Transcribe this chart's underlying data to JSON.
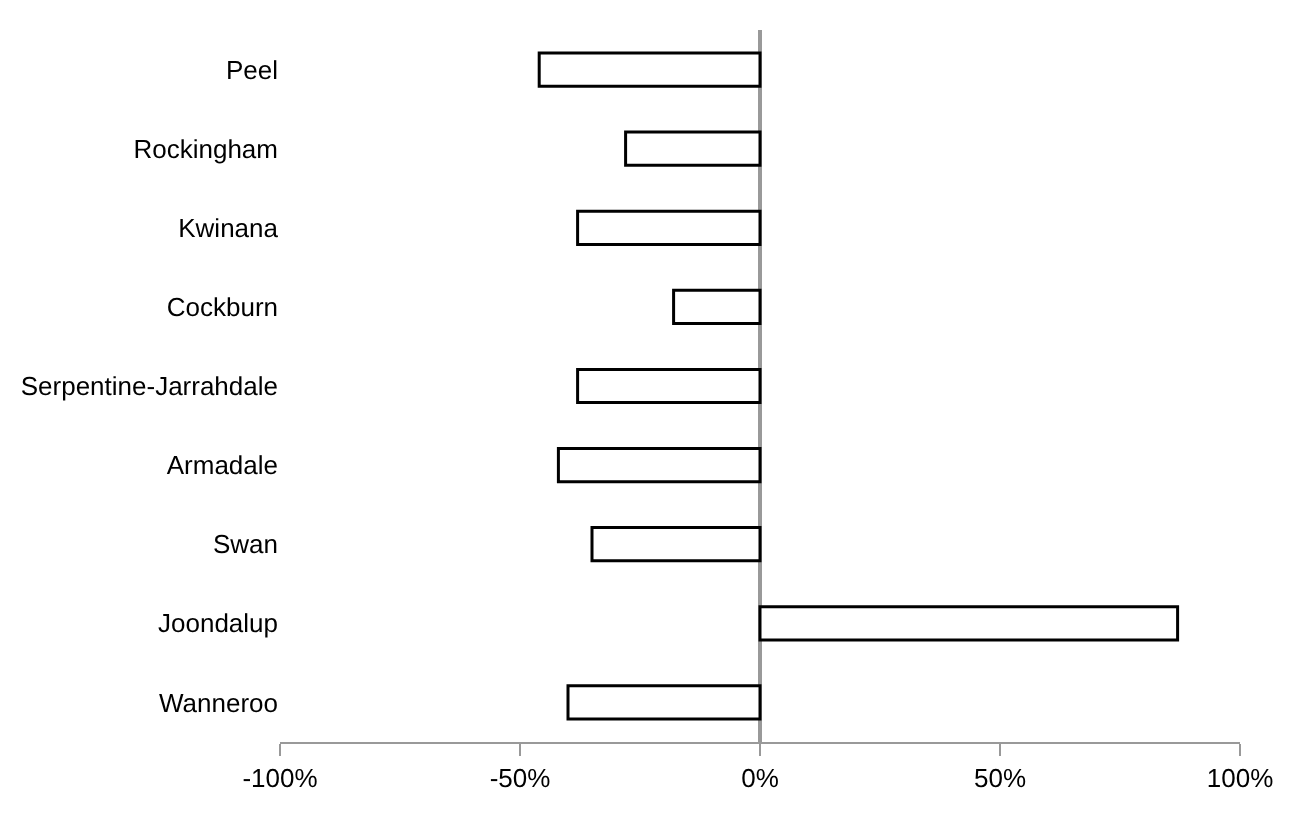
{
  "chart_data": {
    "type": "bar",
    "orientation": "horizontal",
    "categories": [
      "Peel",
      "Rockingham",
      "Kwinana",
      "Cockburn",
      "Serpentine-Jarrahdale",
      "Armadale",
      "Swan",
      "Joondalup",
      "Wanneroo"
    ],
    "series": [
      {
        "color": "#ffffff",
        "values": [
          -46,
          -28,
          -38,
          -18,
          -38,
          -42,
          -35,
          87,
          -40
        ]
      }
    ],
    "xlim": [
      -100,
      100
    ],
    "xticks": [
      {
        "value": -100,
        "label": "-100%"
      },
      {
        "value": -50,
        "label": "-50%"
      },
      {
        "value": 0,
        "label": "0%"
      },
      {
        "value": 50,
        "label": "50%"
      },
      {
        "value": 100,
        "label": "100%"
      }
    ],
    "relative": false
  }
}
